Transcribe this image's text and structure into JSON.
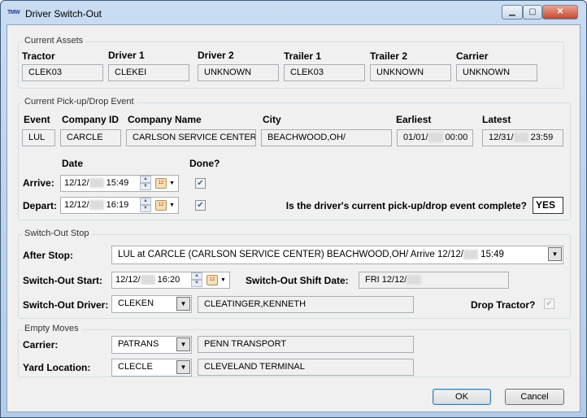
{
  "window": {
    "title": "Driver Switch-Out",
    "icon_text": "TMW"
  },
  "assets": {
    "legend": "Current Assets",
    "fields": [
      {
        "label": "Tractor",
        "value": "CLEK03"
      },
      {
        "label": "Driver 1",
        "value": "CLEKEI"
      },
      {
        "label": "Driver 2",
        "value": "UNKNOWN"
      },
      {
        "label": "Trailer 1",
        "value": "CLEK03"
      },
      {
        "label": "Trailer 2",
        "value": "UNKNOWN"
      },
      {
        "label": "Carrier",
        "value": "UNKNOWN"
      }
    ]
  },
  "event": {
    "legend": "Current Pick-up/Drop Event",
    "headers": [
      "Event",
      "Company ID",
      "Company Name",
      "City",
      "Earliest",
      "Latest"
    ],
    "values": [
      "LUL",
      "CARCLE",
      "CARLSON SERVICE CENTER",
      "BEACHWOOD,OH/"
    ],
    "earliest": {
      "date": "01/01/",
      "time": "00:00"
    },
    "latest": {
      "date": "12/31/",
      "time": "23:59"
    },
    "date_label": "Date",
    "done_label": "Done?",
    "arrive": {
      "label": "Arrive:",
      "date": "12/12/",
      "time": "15:49",
      "done": true
    },
    "depart": {
      "label": "Depart:",
      "date": "12/12/",
      "time": "16:19",
      "done": true
    },
    "complete_question": "Is the driver's current pick-up/drop event complete?",
    "complete_value": "YES"
  },
  "switchout": {
    "legend": "Switch-Out Stop",
    "after_stop_label": "After Stop:",
    "after_stop_value": "LUL at CARCLE (CARLSON SERVICE CENTER) BEACHWOOD,OH/ Arrive 12/12/",
    "after_stop_time": "15:49",
    "start_label": "Switch-Out Start:",
    "start_date": "12/12/",
    "start_time": "16:20",
    "shift_label": "Switch-Out Shift Date:",
    "shift_value": "FRI 12/12/",
    "driver_label": "Switch-Out Driver:",
    "driver_id": "CLEKEN",
    "driver_name": "CLEATINGER,KENNETH",
    "drop_tractor_label": "Drop Tractor?",
    "drop_tractor": false
  },
  "empty": {
    "legend": "Empty Moves",
    "carrier_label": "Carrier:",
    "carrier_id": "PATRANS",
    "carrier_name": "PENN TRANSPORT",
    "yard_label": "Yard Location:",
    "yard_id": "CLECLE",
    "yard_name": "CLEVELAND TERMINAL"
  },
  "buttons": {
    "ok": "OK",
    "cancel": "Cancel"
  }
}
